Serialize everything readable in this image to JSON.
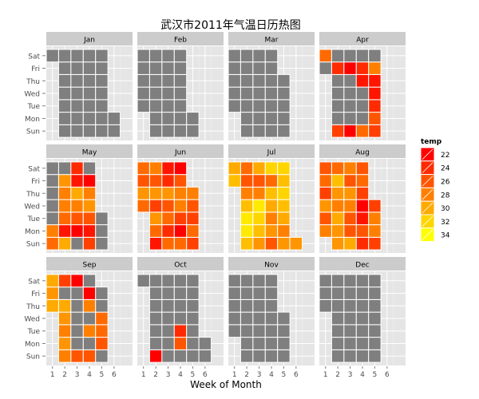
{
  "chart_data": {
    "type": "heatmap",
    "title": "武汉市2011年气温日历热图",
    "xlabel": "Week of Month",
    "ylabel": "",
    "x_ticks": [
      1,
      2,
      3,
      4,
      5,
      6
    ],
    "y_ticks": [
      "Sun",
      "Mon",
      "Tue",
      "Wed",
      "Thu",
      "Fri",
      "Sat"
    ],
    "months": [
      "Jan",
      "Feb",
      "Mar",
      "Apr",
      "May",
      "Jun",
      "Jul",
      "Aug",
      "Sep",
      "Oct",
      "Nov",
      "Dec"
    ],
    "year": 2011,
    "legend": {
      "title": "temp",
      "ticks": [
        22,
        24,
        26,
        28,
        30,
        32,
        34
      ],
      "position": "right",
      "low_color": "#ff0000",
      "high_color": "#ffff00"
    },
    "grid": true,
    "missing_color": "#7f7f7f",
    "temps": {
      "Apr": {
        "2": 27,
        "3": 25,
        "8": 24,
        "10": 22,
        "15": 22,
        "17": 27,
        "21": 23,
        "22": 24,
        "24": 25,
        "25": 26,
        "26": 24,
        "27": 23,
        "28": 23,
        "29": 28
      },
      "May": {
        "1": 27,
        "2": 28,
        "8": 30,
        "9": 23,
        "10": 27,
        "11": 28,
        "12": 28,
        "13": 29,
        "16": 22,
        "17": 26,
        "18": 28,
        "19": 30,
        "20": 23,
        "21": 24,
        "22": 25,
        "23": 23,
        "24": 26,
        "25": 29,
        "26": 28,
        "27": 22
      },
      "Jun": {
        "1": 27,
        "2": 29,
        "3": 26,
        "4": 27,
        "5": 23,
        "6": 27,
        "7": 29,
        "8": 25,
        "9": 29,
        "10": 26,
        "11": 28,
        "12": 27,
        "13": 24,
        "14": 27,
        "15": 26,
        "16": 29,
        "17": 24,
        "18": 23,
        "19": 27,
        "20": 22,
        "21": 25,
        "22": 28,
        "23": 28,
        "24": 26,
        "25": 22,
        "26": 25,
        "27": 27,
        "28": 25,
        "29": 26,
        "30": 28
      },
      "Jul": {
        "1": 31,
        "2": 30,
        "3": 31,
        "4": 33,
        "5": 33,
        "6": 31,
        "7": 28,
        "8": 26,
        "9": 27,
        "10": 29,
        "11": 31,
        "12": 32,
        "13": 33,
        "14": 28,
        "15": 26,
        "16": 30,
        "17": 26,
        "18": 29,
        "19": 28,
        "20": 30,
        "21": 31,
        "22": 27,
        "23": 32,
        "24": 29,
        "25": 28,
        "26": 30,
        "27": 31,
        "28": 32,
        "29": 31,
        "30": 32,
        "31": 29
      },
      "Aug": {
        "1": 28,
        "2": 26,
        "3": 29,
        "4": 25,
        "5": 27,
        "6": 26,
        "7": 29,
        "8": 29,
        "9": 30,
        "10": 28,
        "11": 29,
        "12": 31,
        "13": 27,
        "14": 30,
        "15": 26,
        "16": 26,
        "17": 28,
        "18": 29,
        "19": 26,
        "20": 28,
        "21": 24,
        "22": 26,
        "23": 23,
        "24": 22,
        "25": 25,
        "26": 27,
        "27": 26,
        "28": 25,
        "29": 28,
        "30": 28,
        "31": 25
      },
      "Sep": {
        "1": 30,
        "2": 29,
        "3": 30,
        "4": 28,
        "5": 29,
        "6": 28,
        "7": 29,
        "8": 30,
        "10": 25,
        "11": 26,
        "17": 22,
        "18": 26,
        "20": 28,
        "22": 28,
        "23": 22,
        "26": 26,
        "27": 27,
        "28": 27
      },
      "Oct": {
        "2": 22,
        "17": 26,
        "18": 24
      }
    }
  }
}
